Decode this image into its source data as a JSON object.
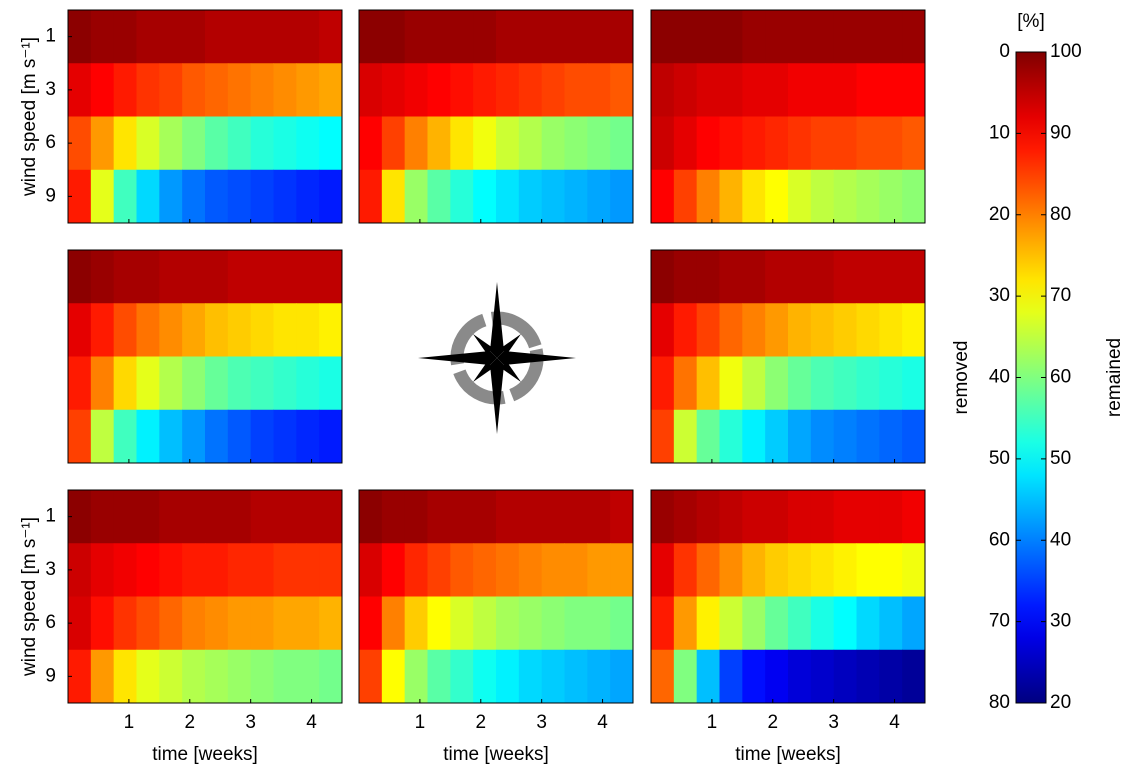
{
  "chart_data": {
    "type": "heatmap",
    "colormap": "jet",
    "x_label": "time [weeks]",
    "y_label": "wind speed [m s⁻¹]",
    "x": [
      0.1875,
      0.5625,
      0.9375,
      1.3125,
      1.6875,
      2.0625,
      2.4375,
      2.8125,
      3.1875,
      3.5625,
      3.9375,
      4.3125
    ],
    "xlim": [
      0,
      4.5
    ],
    "xticks": [
      1,
      2,
      3,
      4
    ],
    "categories": [
      1,
      3,
      6,
      9
    ],
    "panels": [
      {
        "values": [
          [
            99,
            98,
            98,
            97,
            97,
            97,
            96,
            96,
            96,
            96,
            96,
            95
          ],
          [
            92,
            90,
            88,
            86,
            85,
            83,
            82,
            81,
            80,
            79,
            78,
            77
          ],
          [
            84,
            78,
            72,
            67,
            63,
            60,
            57,
            55,
            53,
            52,
            51,
            50
          ],
          [
            88,
            68,
            55,
            47,
            42,
            39,
            37,
            36,
            35,
            34,
            33,
            32
          ]
        ]
      },
      {
        "values": [
          [
            99,
            99,
            98,
            98,
            98,
            98,
            97,
            97,
            97,
            97,
            97,
            97
          ],
          [
            93,
            92,
            91,
            90,
            89,
            88,
            87,
            86,
            85,
            84,
            84,
            83
          ],
          [
            90,
            85,
            80,
            76,
            72,
            69,
            66,
            64,
            62,
            61,
            60,
            59
          ],
          [
            88,
            72,
            62,
            57,
            53,
            50,
            48,
            46,
            45,
            44,
            43,
            42
          ]
        ]
      },
      {
        "values": [
          [
            99,
            99,
            99,
            99,
            98,
            98,
            98,
            98,
            98,
            98,
            98,
            98
          ],
          [
            95,
            94,
            93,
            93,
            92,
            92,
            91,
            91,
            91,
            90,
            90,
            90
          ],
          [
            94,
            92,
            90,
            89,
            88,
            87,
            86,
            85,
            85,
            84,
            84,
            83
          ],
          [
            90,
            85,
            80,
            76,
            72,
            70,
            67,
            65,
            64,
            63,
            62,
            61
          ]
        ]
      },
      {
        "values": [
          [
            99,
            98,
            97,
            97,
            96,
            96,
            96,
            95,
            95,
            95,
            95,
            95
          ],
          [
            92,
            88,
            84,
            81,
            79,
            77,
            75,
            74,
            73,
            72,
            72,
            71
          ],
          [
            88,
            80,
            73,
            68,
            64,
            61,
            58,
            56,
            55,
            54,
            53,
            52
          ],
          [
            85,
            65,
            55,
            49,
            45,
            42,
            39,
            37,
            35,
            34,
            33,
            32
          ]
        ]
      },
      {
        "values": [
          [
            99,
            98,
            98,
            97,
            97,
            96,
            96,
            96,
            95,
            95,
            95,
            95
          ],
          [
            92,
            88,
            85,
            82,
            80,
            78,
            76,
            75,
            74,
            73,
            72,
            71
          ],
          [
            88,
            81,
            75,
            69,
            65,
            61,
            58,
            56,
            55,
            54,
            53,
            52
          ],
          [
            85,
            66,
            58,
            53,
            49,
            46,
            43,
            41,
            40,
            39,
            38,
            37
          ]
        ]
      },
      {
        "values": [
          [
            99,
            98,
            98,
            98,
            97,
            97,
            97,
            97,
            96,
            96,
            96,
            96
          ],
          [
            94,
            92,
            91,
            90,
            89,
            88,
            88,
            87,
            87,
            86,
            86,
            86
          ],
          [
            93,
            89,
            86,
            84,
            82,
            80,
            79,
            78,
            78,
            77,
            77,
            76
          ],
          [
            88,
            78,
            72,
            68,
            66,
            64,
            63,
            62,
            61,
            60,
            60,
            59
          ]
        ]
      },
      {
        "values": [
          [
            99,
            98,
            98,
            97,
            97,
            97,
            96,
            96,
            96,
            96,
            96,
            95
          ],
          [
            93,
            90,
            87,
            85,
            83,
            82,
            81,
            80,
            79,
            79,
            78,
            78
          ],
          [
            90,
            80,
            74,
            70,
            67,
            65,
            63,
            62,
            61,
            60,
            60,
            59
          ],
          [
            85,
            70,
            62,
            57,
            54,
            51,
            49,
            47,
            46,
            45,
            44,
            43
          ]
        ]
      },
      {
        "values": [
          [
            98,
            97,
            96,
            95,
            94,
            94,
            93,
            93,
            92,
            92,
            92,
            91
          ],
          [
            92,
            86,
            82,
            79,
            76,
            74,
            73,
            72,
            71,
            70,
            70,
            69
          ],
          [
            88,
            78,
            71,
            66,
            62,
            58,
            55,
            52,
            50,
            47,
            45,
            43
          ],
          [
            82,
            60,
            45,
            35,
            31,
            29,
            27,
            26,
            25,
            24,
            23,
            22
          ]
        ]
      }
    ],
    "colorbar": {
      "unit": "[%]",
      "label": "remained",
      "clim": [
        20,
        100
      ],
      "ticks": [
        20,
        30,
        40,
        50,
        60,
        70,
        80,
        90,
        100
      ],
      "left_label": "removed",
      "left_lim": [
        80,
        0
      ],
      "left_ticks": [
        0,
        10,
        20,
        30,
        40,
        50,
        60,
        70,
        80
      ]
    }
  }
}
